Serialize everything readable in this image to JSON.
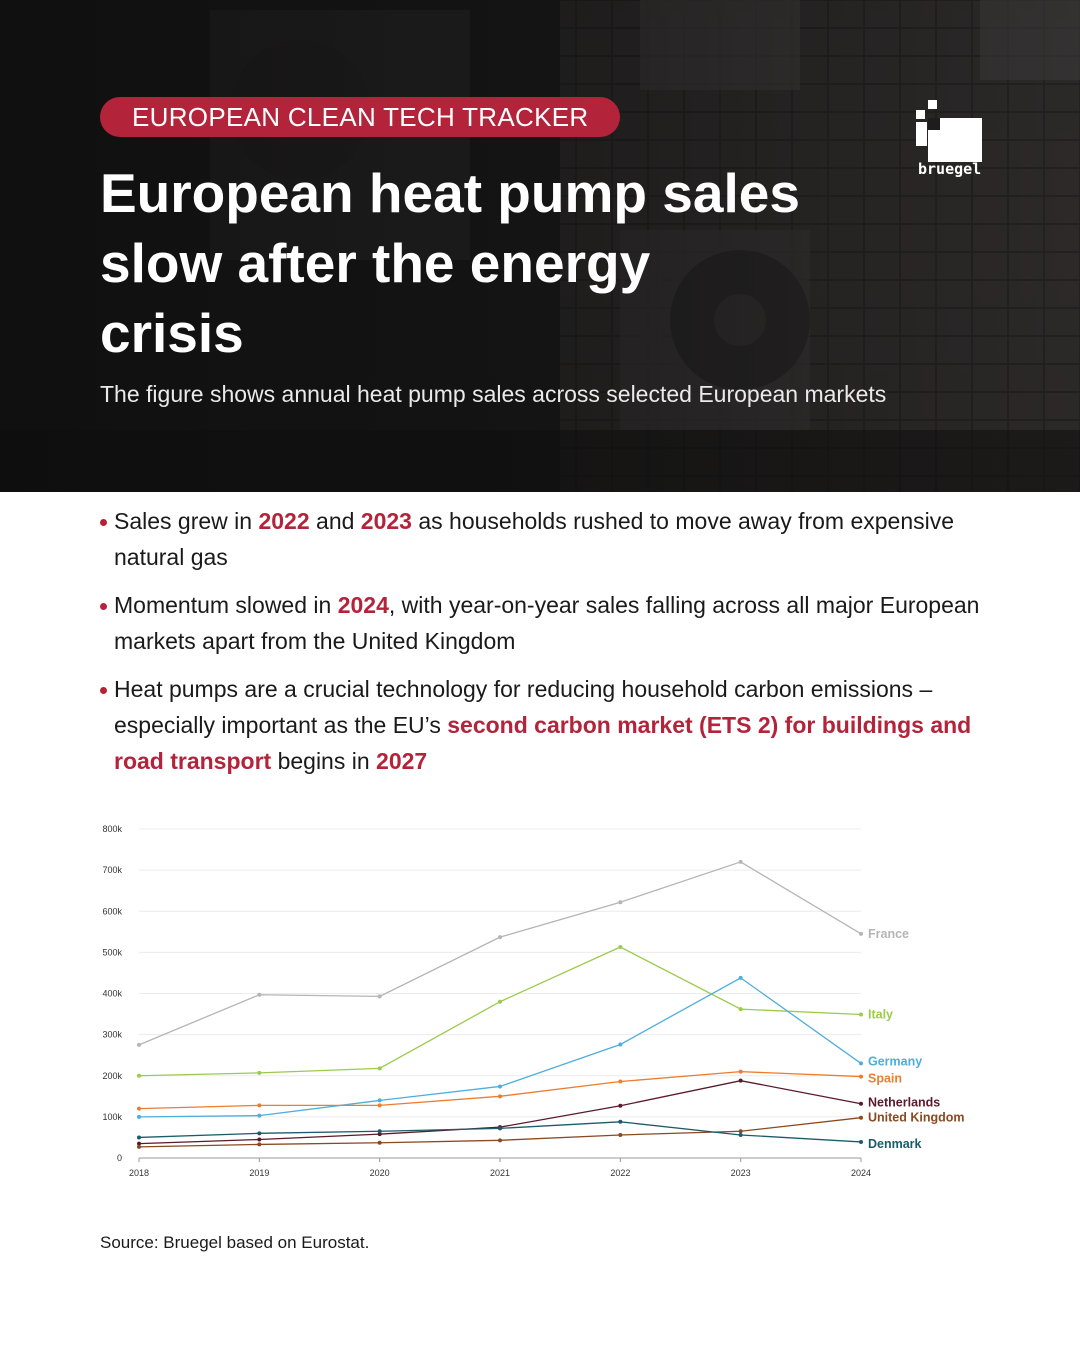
{
  "header": {
    "tag": "EUROPEAN CLEAN TECH TRACKER",
    "title": "European heat pump sales slow after the energy crisis",
    "subtitle": "The figure shows annual heat pump sales across selected European markets",
    "logo_text": "bruegel"
  },
  "bullets": [
    {
      "parts": [
        {
          "text": "Sales grew in "
        },
        {
          "text": "2022",
          "highlight": true
        },
        {
          "text": " and "
        },
        {
          "text": "2023",
          "highlight": true
        },
        {
          "text": " as households rushed to move away from expensive natural gas"
        }
      ]
    },
    {
      "parts": [
        {
          "text": "Momentum slowed in "
        },
        {
          "text": "2024",
          "highlight": true
        },
        {
          "text": ", with year-on-year sales falling across all major European markets apart from the United Kingdom"
        }
      ]
    },
    {
      "parts": [
        {
          "text": "Heat pumps are a crucial technology for reducing household carbon emissions – especially important as the EU’s "
        },
        {
          "text": "second carbon market (ETS 2) for buildings and road transport",
          "highlight": true
        },
        {
          "text": " begins in "
        },
        {
          "text": "2027",
          "highlight": true
        }
      ]
    }
  ],
  "chart_data": {
    "type": "line",
    "title": "",
    "xlabel": "",
    "ylabel": "",
    "x": [
      2018,
      2019,
      2020,
      2021,
      2022,
      2023,
      2024
    ],
    "ylim": [
      0,
      800000
    ],
    "yticks": [
      0,
      100000,
      200000,
      300000,
      400000,
      500000,
      600000,
      700000,
      800000
    ],
    "ytick_labels": [
      "0",
      "100k",
      "200k",
      "300k",
      "400k",
      "500k",
      "600k",
      "700k",
      "800k"
    ],
    "grid": true,
    "legend": "direct labels at line ends, right side",
    "series": [
      {
        "name": "France",
        "color": "#b5b5b5",
        "values": [
          275000,
          397000,
          393000,
          537000,
          622000,
          720000,
          545000
        ]
      },
      {
        "name": "Italy",
        "color": "#9bcb4c",
        "values": [
          200000,
          207000,
          218000,
          380000,
          513000,
          362000,
          349000
        ]
      },
      {
        "name": "Germany",
        "color": "#4eaedd",
        "values": [
          100000,
          103000,
          140000,
          174000,
          276000,
          438000,
          230000
        ]
      },
      {
        "name": "Spain",
        "color": "#ec7d2f",
        "values": [
          120000,
          128000,
          128000,
          150000,
          186000,
          210000,
          198000
        ]
      },
      {
        "name": "Netherlands",
        "color": "#5a1a2a",
        "values": [
          35000,
          45000,
          58000,
          75000,
          127000,
          188000,
          132000
        ]
      },
      {
        "name": "United Kingdom",
        "color": "#8a4a20",
        "values": [
          27000,
          33000,
          37000,
          43000,
          56000,
          65000,
          98000
        ]
      },
      {
        "name": "Denmark",
        "color": "#1c5b6a",
        "values": [
          50000,
          60000,
          65000,
          72000,
          88000,
          56000,
          39000
        ]
      }
    ]
  },
  "footer": {
    "source": "Source: Bruegel based on Eurostat."
  }
}
